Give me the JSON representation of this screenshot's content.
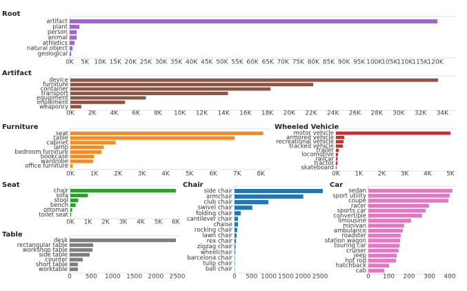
{
  "chart_data": [
    {
      "type": "bar",
      "orientation": "horizontal",
      "title": "Root",
      "color": "#a066c8",
      "categories": [
        "artifact",
        "plant",
        "person",
        "animal",
        "athletics",
        "natural object",
        "geological"
      ],
      "values": [
        120700,
        3200,
        2300,
        2300,
        1600,
        900,
        500
      ],
      "xlim": [
        0,
        127000
      ],
      "xticks": [
        {
          "value": 0,
          "label": "0K"
        },
        {
          "value": 5000,
          "label": "5K"
        },
        {
          "value": 10000,
          "label": "10K"
        },
        {
          "value": 15000,
          "label": "15K"
        },
        {
          "value": 20000,
          "label": "20K"
        },
        {
          "value": 25000,
          "label": "25K"
        },
        {
          "value": 30000,
          "label": "30K"
        },
        {
          "value": 35000,
          "label": "35K"
        },
        {
          "value": 40000,
          "label": "40K"
        },
        {
          "value": 45000,
          "label": "45K"
        },
        {
          "value": 50000,
          "label": "50K"
        },
        {
          "value": 55000,
          "label": "55K"
        },
        {
          "value": 60000,
          "label": "60K"
        },
        {
          "value": 65000,
          "label": "65K"
        },
        {
          "value": 70000,
          "label": "70K"
        },
        {
          "value": 75000,
          "label": "75K"
        },
        {
          "value": 80000,
          "label": "80K"
        },
        {
          "value": 85000,
          "label": "85K"
        },
        {
          "value": 90000,
          "label": "90K"
        },
        {
          "value": 95000,
          "label": "95K"
        },
        {
          "value": 100000,
          "label": "100K"
        },
        {
          "value": 105000,
          "label": "105K"
        },
        {
          "value": 110000,
          "label": "110K"
        },
        {
          "value": 115000,
          "label": "115K"
        },
        {
          "value": 120000,
          "label": "120K"
        }
      ]
    },
    {
      "type": "bar",
      "orientation": "horizontal",
      "title": "Artifact",
      "color": "#8b5445",
      "categories": [
        "device",
        "furniture",
        "container",
        "transport",
        "equipment",
        "implement",
        "weaponry"
      ],
      "values": [
        33600,
        22200,
        18300,
        14400,
        6900,
        5000,
        1000
      ],
      "xlim": [
        0,
        35300
      ],
      "xticks": [
        {
          "value": 0,
          "label": "0K"
        },
        {
          "value": 2000,
          "label": "2K"
        },
        {
          "value": 4000,
          "label": "4K"
        },
        {
          "value": 6000,
          "label": "6K"
        },
        {
          "value": 8000,
          "label": "8K"
        },
        {
          "value": 10000,
          "label": "10K"
        },
        {
          "value": 12000,
          "label": "12K"
        },
        {
          "value": 14000,
          "label": "14K"
        },
        {
          "value": 16000,
          "label": "16K"
        },
        {
          "value": 18000,
          "label": "18K"
        },
        {
          "value": 20000,
          "label": "20K"
        },
        {
          "value": 22000,
          "label": "22K"
        },
        {
          "value": 24000,
          "label": "24K"
        },
        {
          "value": 26000,
          "label": "26K"
        },
        {
          "value": 28000,
          "label": "28K"
        },
        {
          "value": 30000,
          "label": "30K"
        },
        {
          "value": 32000,
          "label": "32K"
        },
        {
          "value": 34000,
          "label": "34K"
        }
      ]
    },
    {
      "type": "bar",
      "orientation": "horizontal",
      "title": "Furniture",
      "color": "#f8891d",
      "categories": [
        "seat",
        "table",
        "cabinet",
        "lamp",
        "bedroom furniture",
        "bookcase",
        "wardrobe",
        "office furniture"
      ],
      "values": [
        8100,
        6900,
        1900,
        1400,
        1300,
        1000,
        950,
        100
      ],
      "xlim": [
        0,
        8400
      ],
      "xticks": [
        {
          "value": 0,
          "label": "0K"
        },
        {
          "value": 1000,
          "label": "1K"
        },
        {
          "value": 2000,
          "label": "2K"
        },
        {
          "value": 3000,
          "label": "3K"
        },
        {
          "value": 4000,
          "label": "4K"
        },
        {
          "value": 5000,
          "label": "5K"
        },
        {
          "value": 6000,
          "label": "6K"
        },
        {
          "value": 7000,
          "label": "7K"
        },
        {
          "value": 8000,
          "label": "8K"
        }
      ]
    },
    {
      "type": "bar",
      "orientation": "horizontal",
      "title": "Wheeled Vehicle",
      "color": "#d62728",
      "categories": [
        "motor vehicle",
        "armored vehicle",
        "recreational vehicle",
        "tracked vehicle",
        "trailer",
        "locomotive",
        "railcar",
        "tractor",
        "skateboard"
      ],
      "values": [
        5000,
        360,
        330,
        300,
        120,
        90,
        70,
        60,
        30
      ],
      "xlim": [
        0,
        5300
      ],
      "xticks": [
        {
          "value": 0,
          "label": "0K"
        },
        {
          "value": 1000,
          "label": "1K"
        },
        {
          "value": 2000,
          "label": "2K"
        },
        {
          "value": 3000,
          "label": "3K"
        },
        {
          "value": 4000,
          "label": "4K"
        },
        {
          "value": 5000,
          "label": "5K"
        }
      ]
    },
    {
      "type": "bar",
      "orientation": "horizontal",
      "title": "Seat",
      "color": "#2ca02c",
      "categories": [
        "chair",
        "sofa",
        "stool",
        "bench",
        "ottoman",
        "toilet seat"
      ],
      "values": [
        6000,
        1000,
        450,
        300,
        100,
        50
      ],
      "xlim": [
        0,
        6200
      ],
      "xticks": [
        {
          "value": 0,
          "label": "0K"
        },
        {
          "value": 1000,
          "label": "1K"
        },
        {
          "value": 2000,
          "label": "2K"
        },
        {
          "value": 3000,
          "label": "3K"
        },
        {
          "value": 4000,
          "label": "4K"
        },
        {
          "value": 5000,
          "label": "5K"
        },
        {
          "value": 6000,
          "label": "6K"
        }
      ]
    },
    {
      "type": "bar",
      "orientation": "horizontal",
      "title": "Chair",
      "color": "#1f77b4",
      "categories": [
        "side chair",
        "armchair",
        "club chair",
        "swivel chair",
        "folding chair",
        "cantilever chair",
        "chaise",
        "rocking chair",
        "lawn chair",
        "rex chair",
        "zigzag chair",
        "wheelchair",
        "barcelona chair",
        "tulip chair",
        "ball chair"
      ],
      "values": [
        2580,
        2010,
        990,
        520,
        180,
        100,
        100,
        80,
        60,
        40,
        30,
        20,
        10,
        10,
        5
      ],
      "xlim": [
        0,
        2660
      ],
      "xticks": [
        0,
        500,
        1000,
        1500,
        2000,
        2500
      ]
    },
    {
      "type": "bar",
      "orientation": "horizontal",
      "title": "Car",
      "color": "#e377c2",
      "categories": [
        "sedan",
        "sport utility",
        "coupe",
        "racer",
        "sports car",
        "convertible",
        "limousine",
        "minivan",
        "ambulance",
        "roadster",
        "station wagon",
        "touring car",
        "cruiser",
        "jeep",
        "hot rod",
        "hatchback",
        "cab"
      ],
      "values": [
        413,
        400,
        393,
        298,
        281,
        264,
        210,
        176,
        170,
        159,
        156,
        153,
        149,
        139,
        136,
        102,
        78
      ],
      "xlim": [
        0,
        434
      ],
      "xticks": [
        0,
        100,
        200,
        300,
        400
      ]
    },
    {
      "type": "bar",
      "orientation": "horizontal",
      "title": "Table",
      "color": "#7f7f7f",
      "categories": [
        "desk",
        "rectangular table",
        "workshop table",
        "side table",
        "counter",
        "short table",
        "worktable"
      ],
      "values": [
        2470,
        545,
        530,
        465,
        305,
        190,
        190
      ],
      "xlim": [
        0,
        2580
      ],
      "xticks": [
        0,
        500,
        1000,
        1500,
        2000,
        2500
      ]
    }
  ]
}
